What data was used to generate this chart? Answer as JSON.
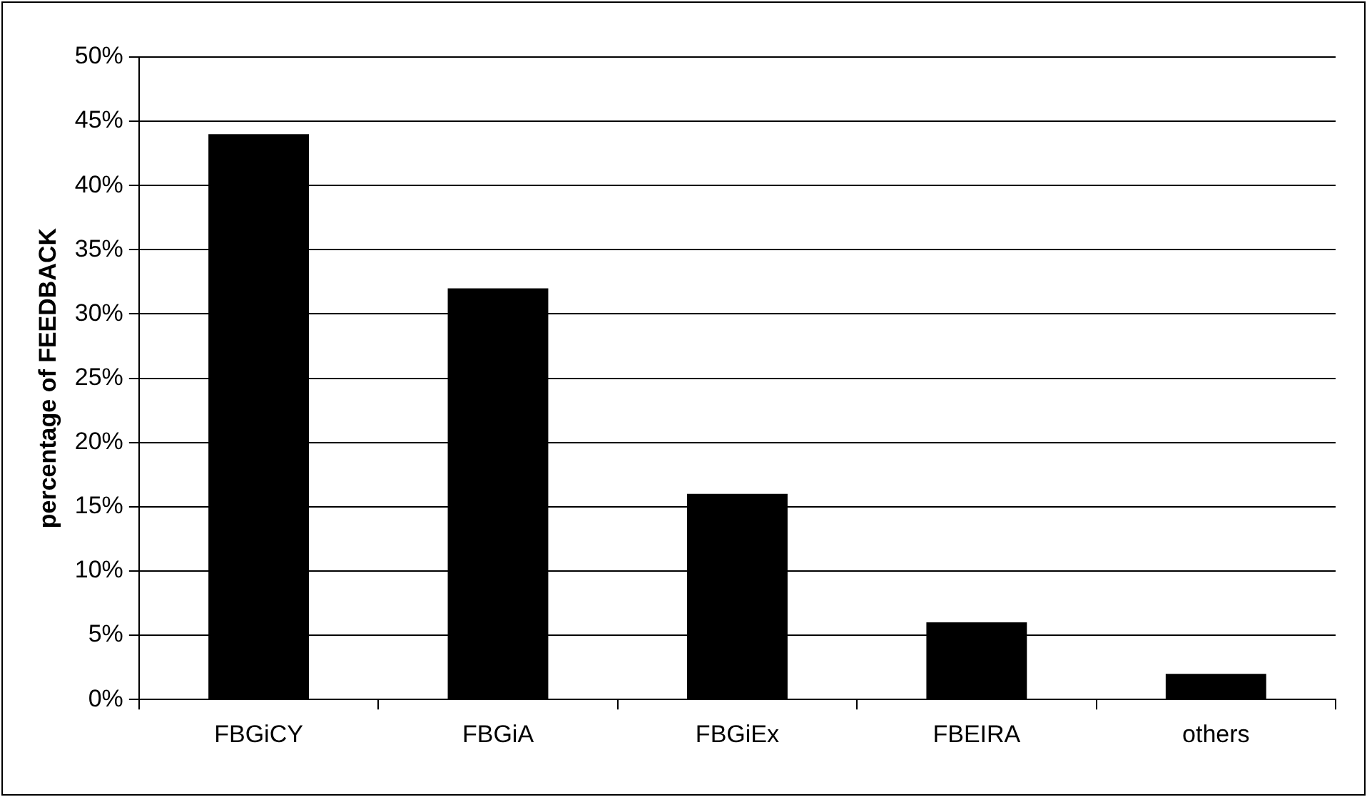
{
  "chart_data": {
    "type": "bar",
    "ylabel": "percentage of FEEDBACK",
    "categories": [
      "FBGiCY",
      "FBGiA",
      "FBGiEx",
      "FBEIRA",
      "others"
    ],
    "values": [
      44,
      32,
      16,
      6,
      2
    ],
    "color": "#000000",
    "ylim": [
      0,
      50
    ],
    "yticks": [
      {
        "value": 0,
        "label": "0%"
      },
      {
        "value": 5,
        "label": "5%"
      },
      {
        "value": 10,
        "label": "10%"
      },
      {
        "value": 15,
        "label": "15%"
      },
      {
        "value": 20,
        "label": "20%"
      },
      {
        "value": 25,
        "label": "25%"
      },
      {
        "value": 30,
        "label": "30%"
      },
      {
        "value": 35,
        "label": "35%"
      },
      {
        "value": 40,
        "label": "40%"
      },
      {
        "value": 45,
        "label": "45%"
      },
      {
        "value": 50,
        "label": "50%"
      }
    ],
    "grid": "y",
    "legend": false
  }
}
